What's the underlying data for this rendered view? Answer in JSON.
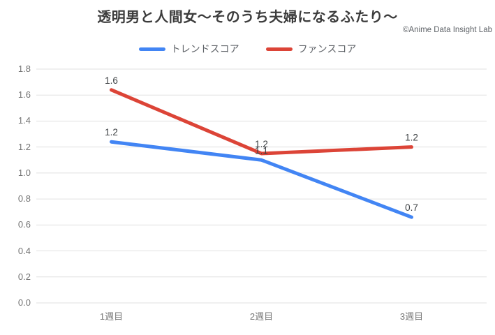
{
  "chart_data": {
    "type": "line",
    "title": "透明男と人間女～そのうち夫婦になるふたり～",
    "watermark": "©Anime Data Insight Lab",
    "categories": [
      "1週目",
      "2週目",
      "3週目"
    ],
    "series": [
      {
        "name": "トレンドスコア",
        "color": "#4285F4",
        "values": [
          1.24,
          1.1,
          0.66
        ],
        "labels": [
          "1.2",
          "1.1",
          "0.7"
        ]
      },
      {
        "name": "ファンスコア",
        "color": "#DC4437",
        "values": [
          1.64,
          1.15,
          1.2
        ],
        "labels": [
          "1.6",
          "1.2",
          "1.2"
        ]
      }
    ],
    "ylim": [
      0.0,
      1.8
    ],
    "ytick_step": 0.2,
    "grid": true,
    "legend_position": "top",
    "styles": {
      "grid_color": "#E0E0E0",
      "tick_label_color": "#757575",
      "point_label_color": "#3C4043",
      "title_color": "#3C3C3C",
      "legend_label_color": "#5F6368"
    }
  }
}
